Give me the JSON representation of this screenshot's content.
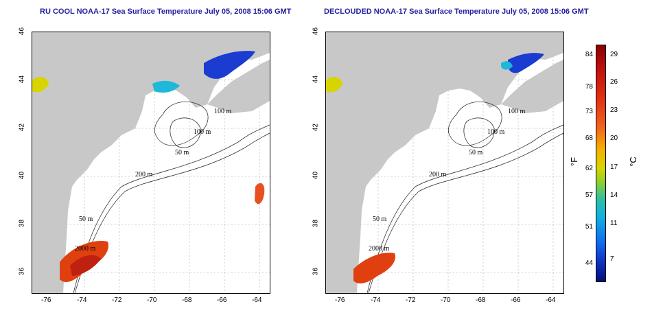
{
  "left_title": "RU COOL NOAA-17 Sea Surface Temperature July 05, 2008 15:06 GMT",
  "right_title": "DECLOUDED NOAA-17 Sea Surface Temperature July 05, 2008 15:06 GMT",
  "lon_ticks": [
    "-76",
    "-74",
    "-72",
    "-70",
    "-68",
    "-66",
    "-64"
  ],
  "lat_ticks": [
    "46",
    "44",
    "42",
    "40",
    "38",
    "36"
  ],
  "contour_labels": [
    "100 m",
    "100 m",
    "50 m",
    "200 m",
    "50 m",
    "2000 m"
  ],
  "colorbar": {
    "fahrenheit": [
      "84",
      "78",
      "73",
      "68",
      "62",
      "57",
      "51",
      "44"
    ],
    "celsius": [
      "29",
      "26",
      "23",
      "20",
      "17",
      "14",
      "11",
      "7"
    ],
    "unit_f": "°F",
    "unit_c": "°C"
  },
  "colors": {
    "land": "#c8c8c8",
    "title": "#1f1fa0",
    "warm": "#e04010",
    "cold": "#1a3cd0",
    "mid": "#20b8d8"
  }
}
